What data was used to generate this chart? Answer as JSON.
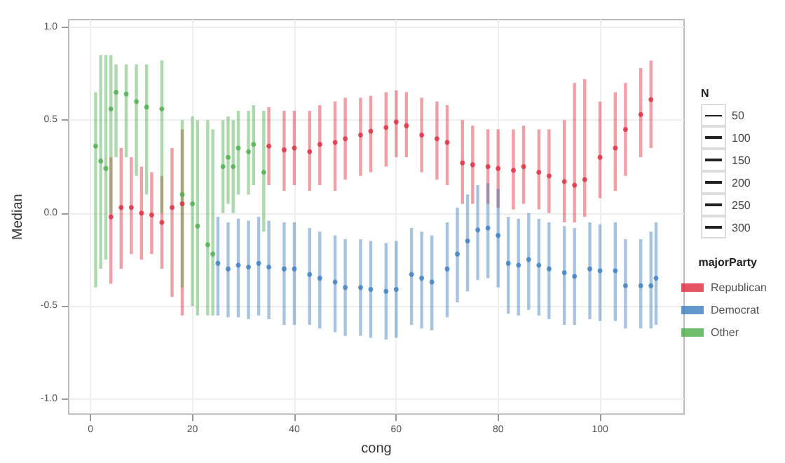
{
  "chart_data": {
    "type": "scatter",
    "xlabel": "cong",
    "ylabel": "Median",
    "legend_title": "majorParty",
    "legend": "right",
    "annotations": [
      "N",
      "50",
      "100",
      "150",
      "200",
      "250",
      "300"
    ],
    "xlim": [
      -4.3,
      116.5
    ],
    "ylim": [
      -1.08,
      1.04
    ],
    "xticks": [
      0,
      20,
      40,
      60,
      80,
      100
    ],
    "yticks": [
      {
        "value": -1,
        "label": "-1.0"
      },
      {
        "value": -0.5,
        "label": "-0.5"
      },
      {
        "value": 0,
        "label": "0.0"
      },
      {
        "value": 0.5,
        "label": "0.5"
      },
      {
        "value": 1,
        "label": "1.0"
      }
    ],
    "grid": true,
    "marker": "circle",
    "series": [
      {
        "name": "Republican",
        "color": "#e0283c",
        "x": [
          4,
          6,
          8,
          10,
          12,
          14,
          16,
          18,
          35,
          38,
          40,
          43,
          45,
          48,
          50,
          53,
          55,
          58,
          60,
          62,
          65,
          68,
          70,
          73,
          75,
          78,
          80,
          83,
          85,
          88,
          90,
          93,
          95,
          97,
          100,
          103,
          105,
          108,
          110
        ],
        "values": [
          -0.02,
          0.03,
          0.03,
          0.0,
          -0.01,
          -0.05,
          0.03,
          0.05,
          0.36,
          0.34,
          0.35,
          0.33,
          0.37,
          0.38,
          0.4,
          0.42,
          0.44,
          0.46,
          0.49,
          0.47,
          0.42,
          0.4,
          0.38,
          0.27,
          0.26,
          0.25,
          0.24,
          0.23,
          0.25,
          0.22,
          0.2,
          0.17,
          0.15,
          0.18,
          0.3,
          0.35,
          0.45,
          0.53,
          0.61
        ],
        "errors": [
          [
            -0.38,
            0.3
          ],
          [
            -0.3,
            0.35
          ],
          [
            -0.22,
            0.3
          ],
          [
            -0.25,
            0.25
          ],
          [
            -0.22,
            0.22
          ],
          [
            -0.3,
            0.2
          ],
          [
            -0.45,
            0.35
          ],
          [
            -0.55,
            0.45
          ],
          [
            0.15,
            0.57
          ],
          [
            0.12,
            0.55
          ],
          [
            0.15,
            0.55
          ],
          [
            0.12,
            0.55
          ],
          [
            0.15,
            0.58
          ],
          [
            0.12,
            0.6
          ],
          [
            0.18,
            0.62
          ],
          [
            0.2,
            0.62
          ],
          [
            0.22,
            0.63
          ],
          [
            0.25,
            0.65
          ],
          [
            0.3,
            0.66
          ],
          [
            0.3,
            0.65
          ],
          [
            0.22,
            0.62
          ],
          [
            0.18,
            0.6
          ],
          [
            0.15,
            0.58
          ],
          [
            0.05,
            0.5
          ],
          [
            0.05,
            0.47
          ],
          [
            0.05,
            0.45
          ],
          [
            0.03,
            0.45
          ],
          [
            0.02,
            0.45
          ],
          [
            0.05,
            0.47
          ],
          [
            0.02,
            0.45
          ],
          [
            0.0,
            0.45
          ],
          [
            -0.05,
            0.5
          ],
          [
            -0.05,
            0.7
          ],
          [
            -0.02,
            0.72
          ],
          [
            0.08,
            0.6
          ],
          [
            0.12,
            0.65
          ],
          [
            0.2,
            0.7
          ],
          [
            0.3,
            0.78
          ],
          [
            0.35,
            0.82
          ]
        ]
      },
      {
        "name": "Democrat",
        "color": "#3a7dbf",
        "x": [
          25,
          27,
          29,
          31,
          33,
          35,
          38,
          40,
          43,
          45,
          48,
          50,
          53,
          55,
          58,
          60,
          63,
          65,
          67,
          70,
          72,
          74,
          76,
          78,
          80,
          82,
          84,
          86,
          88,
          90,
          93,
          95,
          98,
          100,
          103,
          105,
          108,
          110,
          111
        ],
        "values": [
          -0.27,
          -0.3,
          -0.28,
          -0.29,
          -0.27,
          -0.29,
          -0.3,
          -0.3,
          -0.33,
          -0.35,
          -0.37,
          -0.4,
          -0.4,
          -0.41,
          -0.42,
          -0.41,
          -0.33,
          -0.35,
          -0.37,
          -0.3,
          -0.22,
          -0.15,
          -0.09,
          -0.08,
          -0.12,
          -0.27,
          -0.28,
          -0.25,
          -0.28,
          -0.3,
          -0.32,
          -0.34,
          -0.3,
          -0.31,
          -0.31,
          -0.39,
          -0.39,
          -0.39,
          -0.35
        ],
        "errors": [
          [
            -0.55,
            -0.02
          ],
          [
            -0.56,
            -0.05
          ],
          [
            -0.56,
            -0.03
          ],
          [
            -0.57,
            -0.04
          ],
          [
            -0.55,
            -0.02
          ],
          [
            -0.57,
            -0.04
          ],
          [
            -0.6,
            -0.05
          ],
          [
            -0.6,
            -0.05
          ],
          [
            -0.6,
            -0.08
          ],
          [
            -0.62,
            -0.1
          ],
          [
            -0.64,
            -0.12
          ],
          [
            -0.66,
            -0.14
          ],
          [
            -0.66,
            -0.14
          ],
          [
            -0.67,
            -0.15
          ],
          [
            -0.68,
            -0.16
          ],
          [
            -0.67,
            -0.15
          ],
          [
            -0.6,
            -0.08
          ],
          [
            -0.62,
            -0.1
          ],
          [
            -0.63,
            -0.12
          ],
          [
            -0.56,
            -0.05
          ],
          [
            -0.48,
            0.03
          ],
          [
            -0.42,
            0.1
          ],
          [
            -0.36,
            0.15
          ],
          [
            -0.35,
            0.16
          ],
          [
            -0.4,
            0.13
          ],
          [
            -0.54,
            -0.02
          ],
          [
            -0.55,
            -0.03
          ],
          [
            -0.52,
            0.0
          ],
          [
            -0.55,
            -0.03
          ],
          [
            -0.57,
            -0.05
          ],
          [
            -0.6,
            -0.07
          ],
          [
            -0.6,
            -0.08
          ],
          [
            -0.57,
            -0.05
          ],
          [
            -0.58,
            -0.06
          ],
          [
            -0.58,
            -0.05
          ],
          [
            -0.62,
            -0.14
          ],
          [
            -0.62,
            -0.14
          ],
          [
            -0.62,
            -0.1
          ],
          [
            -0.6,
            -0.05
          ]
        ]
      },
      {
        "name": "Other",
        "color": "#4aae48",
        "x": [
          1,
          2,
          3,
          4,
          5,
          7,
          9,
          11,
          14,
          18,
          20,
          21,
          23,
          24,
          26,
          27,
          28,
          29,
          31,
          32,
          34
        ],
        "values": [
          0.36,
          0.28,
          0.24,
          0.56,
          0.65,
          0.64,
          0.6,
          0.57,
          0.56,
          0.1,
          0.05,
          -0.07,
          -0.17,
          -0.22,
          0.25,
          0.3,
          0.25,
          0.35,
          0.33,
          0.37,
          0.22
        ],
        "errors": [
          [
            -0.4,
            0.65
          ],
          [
            -0.3,
            0.85
          ],
          [
            -0.25,
            0.85
          ],
          [
            0.0,
            0.85
          ],
          [
            0.3,
            0.8
          ],
          [
            0.3,
            0.8
          ],
          [
            0.2,
            0.8
          ],
          [
            0.1,
            0.8
          ],
          [
            0.0,
            0.82
          ],
          [
            -0.4,
            0.5
          ],
          [
            -0.5,
            0.52
          ],
          [
            -0.55,
            0.5
          ],
          [
            -0.55,
            0.5
          ],
          [
            -0.55,
            0.45
          ],
          [
            0.0,
            0.5
          ],
          [
            0.05,
            0.52
          ],
          [
            0.0,
            0.5
          ],
          [
            0.1,
            0.55
          ],
          [
            0.1,
            0.55
          ],
          [
            0.15,
            0.58
          ],
          [
            -0.1,
            0.55
          ]
        ]
      }
    ]
  }
}
